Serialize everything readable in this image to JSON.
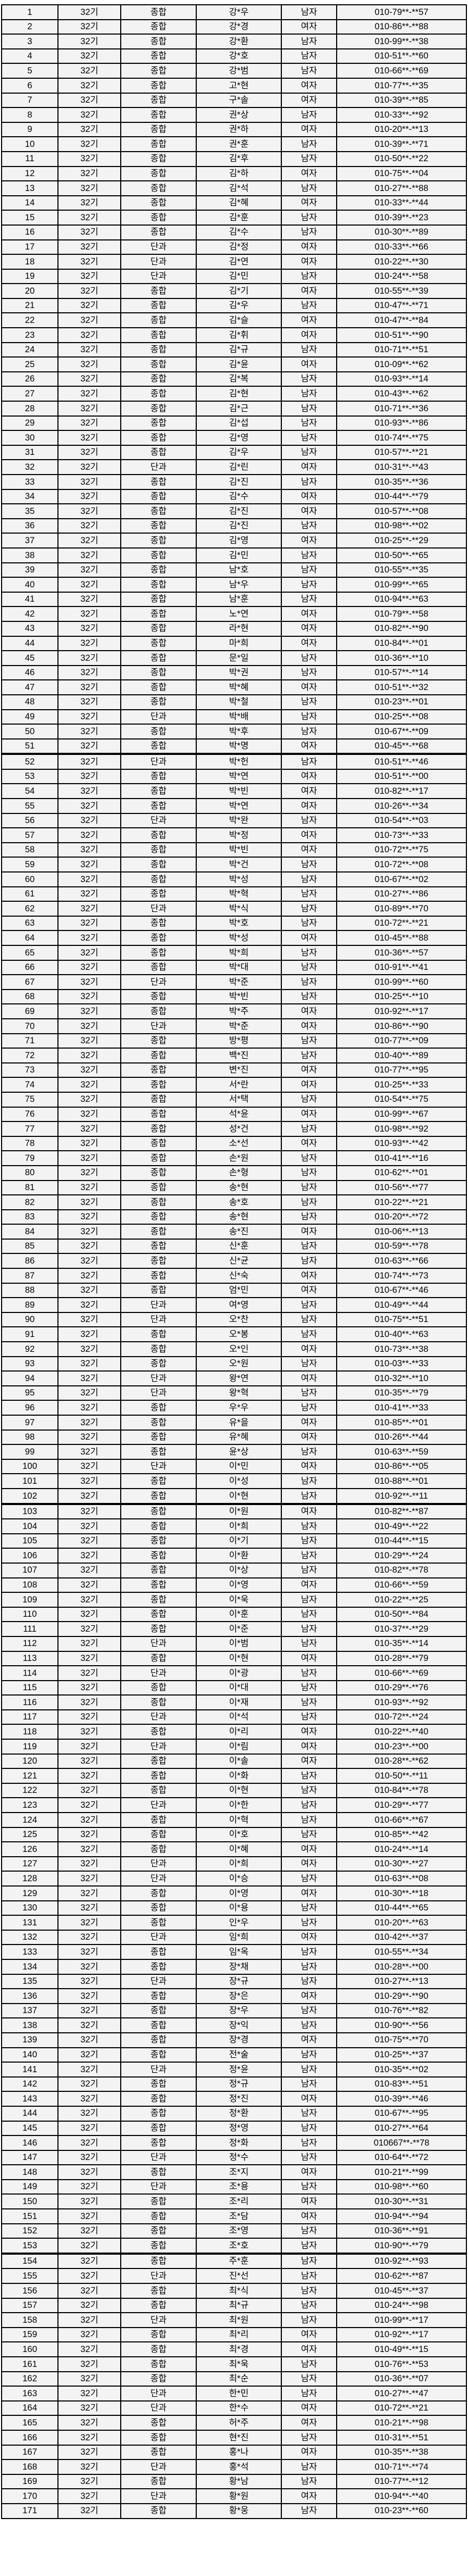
{
  "colors": {
    "page_background": "#ffffff",
    "cell_background": "#f3f3f3",
    "border": "#000000",
    "text": "#000000"
  },
  "layout": {
    "thick_border_after_rows": [
      51,
      102,
      153
    ]
  },
  "table": {
    "rows": [
      [
        "1",
        "32기",
        "종합",
        "강*우",
        "남자",
        "010-79**-**57"
      ],
      [
        "2",
        "32기",
        "종합",
        "강*경",
        "여자",
        "010-86**-**88"
      ],
      [
        "3",
        "32기",
        "종합",
        "강*환",
        "남자",
        "010-99**-**38"
      ],
      [
        "4",
        "32기",
        "종합",
        "강*호",
        "남자",
        "010-51**-**60"
      ],
      [
        "5",
        "32기",
        "종합",
        "강*범",
        "남자",
        "010-66**-**69"
      ],
      [
        "6",
        "32기",
        "종합",
        "고*현",
        "여자",
        "010-77**-**35"
      ],
      [
        "7",
        "32기",
        "종합",
        "구*솔",
        "여자",
        "010-39**-**85"
      ],
      [
        "8",
        "32기",
        "종합",
        "권*상",
        "남자",
        "010-33**-**92"
      ],
      [
        "9",
        "32기",
        "종합",
        "권*하",
        "여자",
        "010-20**-**13"
      ],
      [
        "10",
        "32기",
        "종합",
        "권*훈",
        "남자",
        "010-39**-**71"
      ],
      [
        "11",
        "32기",
        "종합",
        "김*후",
        "남자",
        "010-50**-**22"
      ],
      [
        "12",
        "32기",
        "종합",
        "김*하",
        "여자",
        "010-75**-**04"
      ],
      [
        "13",
        "32기",
        "종합",
        "김*석",
        "남자",
        "010-27**-**88"
      ],
      [
        "14",
        "32기",
        "종합",
        "김*혜",
        "여자",
        "010-33**-**44"
      ],
      [
        "15",
        "32기",
        "종합",
        "김*훈",
        "남자",
        "010-39**-**23"
      ],
      [
        "16",
        "32기",
        "종합",
        "김*수",
        "남자",
        "010-30**-**89"
      ],
      [
        "17",
        "32기",
        "단과",
        "김*정",
        "여자",
        "010-33**-**66"
      ],
      [
        "18",
        "32기",
        "단과",
        "김*연",
        "여자",
        "010-22**-**30"
      ],
      [
        "19",
        "32기",
        "단과",
        "김*민",
        "남자",
        "010-24**-**58"
      ],
      [
        "20",
        "32기",
        "종합",
        "김*기",
        "여자",
        "010-55**-**39"
      ],
      [
        "21",
        "32기",
        "종합",
        "김*우",
        "남자",
        "010-47**-**71"
      ],
      [
        "22",
        "32기",
        "종합",
        "김*슬",
        "여자",
        "010-47**-**84"
      ],
      [
        "23",
        "32기",
        "종합",
        "김*휘",
        "여자",
        "010-51**-**90"
      ],
      [
        "24",
        "32기",
        "종합",
        "김*규",
        "남자",
        "010-71**-**51"
      ],
      [
        "25",
        "32기",
        "종합",
        "김*윤",
        "여자",
        "010-09**-**62"
      ],
      [
        "26",
        "32기",
        "종합",
        "김*복",
        "남자",
        "010-93**-**14"
      ],
      [
        "27",
        "32기",
        "종합",
        "김*현",
        "남자",
        "010-43**-**62"
      ],
      [
        "28",
        "32기",
        "종합",
        "김*근",
        "남자",
        "010-71**-**36"
      ],
      [
        "29",
        "32기",
        "종합",
        "김*섭",
        "남자",
        "010-93**-**86"
      ],
      [
        "30",
        "32기",
        "종합",
        "김*영",
        "남자",
        "010-74**-**75"
      ],
      [
        "31",
        "32기",
        "종합",
        "김*우",
        "남자",
        "010-57**-**21"
      ],
      [
        "32",
        "32기",
        "단과",
        "김*린",
        "여자",
        "010-31**-**43"
      ],
      [
        "33",
        "32기",
        "종합",
        "김*진",
        "남자",
        "010-35**-**36"
      ],
      [
        "34",
        "32기",
        "종합",
        "김*수",
        "여자",
        "010-44**-**79"
      ],
      [
        "35",
        "32기",
        "종합",
        "김*진",
        "여자",
        "010-57**-**08"
      ],
      [
        "36",
        "32기",
        "종합",
        "김*진",
        "남자",
        "010-98**-**02"
      ],
      [
        "37",
        "32기",
        "종합",
        "김*영",
        "여자",
        "010-25**-**29"
      ],
      [
        "38",
        "32기",
        "종합",
        "김*민",
        "남자",
        "010-50**-**65"
      ],
      [
        "39",
        "32기",
        "종합",
        "남*호",
        "남자",
        "010-55**-**35"
      ],
      [
        "40",
        "32기",
        "종합",
        "남*우",
        "남자",
        "010-99**-**65"
      ],
      [
        "41",
        "32기",
        "종합",
        "남*훈",
        "남자",
        "010-94**-**63"
      ],
      [
        "42",
        "32기",
        "종합",
        "노*연",
        "여자",
        "010-79**-**58"
      ],
      [
        "43",
        "32기",
        "종합",
        "라*현",
        "여자",
        "010-82**-**90"
      ],
      [
        "44",
        "32기",
        "종합",
        "마*희",
        "여자",
        "010-84**-**01"
      ],
      [
        "45",
        "32기",
        "종합",
        "문*일",
        "남자",
        "010-36**-**10"
      ],
      [
        "46",
        "32기",
        "종합",
        "박*권",
        "남자",
        "010-57**-**14"
      ],
      [
        "47",
        "32기",
        "종합",
        "박*혜",
        "여자",
        "010-51**-**32"
      ],
      [
        "48",
        "32기",
        "종합",
        "박*철",
        "남자",
        "010-23**-**01"
      ],
      [
        "49",
        "32기",
        "단과",
        "박*배",
        "남자",
        "010-25**-**08"
      ],
      [
        "50",
        "32기",
        "종합",
        "박*후",
        "남자",
        "010-67**-**09"
      ],
      [
        "51",
        "32기",
        "종합",
        "박*명",
        "여자",
        "010-45**-**68"
      ],
      [
        "52",
        "32기",
        "단과",
        "박*헌",
        "남자",
        "010-51**-**46"
      ],
      [
        "53",
        "32기",
        "종합",
        "박*연",
        "여자",
        "010-51**-**00"
      ],
      [
        "54",
        "32기",
        "종합",
        "박*빈",
        "여자",
        "010-82**-**17"
      ],
      [
        "55",
        "32기",
        "종합",
        "박*연",
        "여자",
        "010-26**-**34"
      ],
      [
        "56",
        "32기",
        "단과",
        "박*완",
        "남자",
        "010-54**-**03"
      ],
      [
        "57",
        "32기",
        "종합",
        "박*정",
        "여자",
        "010-73**-**33"
      ],
      [
        "58",
        "32기",
        "종합",
        "박*빈",
        "여자",
        "010-72**-**75"
      ],
      [
        "59",
        "32기",
        "종합",
        "박*건",
        "남자",
        "010-72**-**08"
      ],
      [
        "60",
        "32기",
        "종합",
        "박*성",
        "남자",
        "010-67**-**02"
      ],
      [
        "61",
        "32기",
        "종합",
        "박*혁",
        "남자",
        "010-27**-**86"
      ],
      [
        "62",
        "32기",
        "단과",
        "박*식",
        "남자",
        "010-89**-**70"
      ],
      [
        "63",
        "32기",
        "종합",
        "박*호",
        "남자",
        "010-72**-**21"
      ],
      [
        "64",
        "32기",
        "종합",
        "박*성",
        "여자",
        "010-45**-**88"
      ],
      [
        "65",
        "32기",
        "종합",
        "박*희",
        "남자",
        "010-36**-**57"
      ],
      [
        "66",
        "32기",
        "종합",
        "박*대",
        "남자",
        "010-91**-**41"
      ],
      [
        "67",
        "32기",
        "단과",
        "박*준",
        "남자",
        "010-99**-**60"
      ],
      [
        "68",
        "32기",
        "종합",
        "박*빈",
        "남자",
        "010-25**-**10"
      ],
      [
        "69",
        "32기",
        "종합",
        "박*주",
        "여자",
        "010-92**-**17"
      ],
      [
        "70",
        "32기",
        "단과",
        "박*준",
        "여자",
        "010-86**-**90"
      ],
      [
        "71",
        "32기",
        "종합",
        "방*평",
        "남자",
        "010-77**-**09"
      ],
      [
        "72",
        "32기",
        "종합",
        "백*진",
        "남자",
        "010-40**-**89"
      ],
      [
        "73",
        "32기",
        "종합",
        "변*진",
        "여자",
        "010-77**-**95"
      ],
      [
        "74",
        "32기",
        "종합",
        "서*란",
        "여자",
        "010-25**-**33"
      ],
      [
        "75",
        "32기",
        "종합",
        "서*택",
        "남자",
        "010-54**-**75"
      ],
      [
        "76",
        "32기",
        "종합",
        "석*윤",
        "여자",
        "010-99**-**67"
      ],
      [
        "77",
        "32기",
        "종합",
        "성*건",
        "남자",
        "010-98**-**92"
      ],
      [
        "78",
        "32기",
        "종합",
        "소*선",
        "여자",
        "010-93**-**42"
      ],
      [
        "79",
        "32기",
        "종합",
        "손*원",
        "남자",
        "010-41**-**16"
      ],
      [
        "80",
        "32기",
        "종합",
        "손*형",
        "남자",
        "010-62**-**01"
      ],
      [
        "81",
        "32기",
        "종합",
        "송*현",
        "남자",
        "010-56**-**77"
      ],
      [
        "82",
        "32기",
        "종합",
        "송*호",
        "남자",
        "010-22**-**21"
      ],
      [
        "83",
        "32기",
        "종합",
        "송*현",
        "남자",
        "010-20**-**72"
      ],
      [
        "84",
        "32기",
        "종합",
        "송*진",
        "여자",
        "010-06**-**13"
      ],
      [
        "85",
        "32기",
        "종합",
        "신*훈",
        "남자",
        "010-59**-**78"
      ],
      [
        "86",
        "32기",
        "종합",
        "신*균",
        "남자",
        "010-63**-**66"
      ],
      [
        "87",
        "32기",
        "종합",
        "신*숙",
        "여자",
        "010-74**-**73"
      ],
      [
        "88",
        "32기",
        "종합",
        "엄*민",
        "여자",
        "010-67**-**46"
      ],
      [
        "89",
        "32기",
        "단과",
        "여*영",
        "남자",
        "010-49**-**44"
      ],
      [
        "90",
        "32기",
        "단과",
        "오*찬",
        "남자",
        "010-75**-**51"
      ],
      [
        "91",
        "32기",
        "종합",
        "오*봉",
        "남자",
        "010-40**-**63"
      ],
      [
        "92",
        "32기",
        "종합",
        "오*인",
        "여자",
        "010-73**-**38"
      ],
      [
        "93",
        "32기",
        "종합",
        "오*원",
        "남자",
        "010-03**-**33"
      ],
      [
        "94",
        "32기",
        "단과",
        "왕*연",
        "여자",
        "010-32**-**10"
      ],
      [
        "95",
        "32기",
        "단과",
        "왕*혁",
        "남자",
        "010-35**-**79"
      ],
      [
        "96",
        "32기",
        "종합",
        "우*우",
        "남자",
        "010-41**-**33"
      ],
      [
        "97",
        "32기",
        "종합",
        "유*을",
        "여자",
        "010-85**-**01"
      ],
      [
        "98",
        "32기",
        "종합",
        "유*혜",
        "여자",
        "010-26**-**44"
      ],
      [
        "99",
        "32기",
        "종합",
        "윤*상",
        "남자",
        "010-63**-**59"
      ],
      [
        "100",
        "32기",
        "단과",
        "이*민",
        "여자",
        "010-86**-**05"
      ],
      [
        "101",
        "32기",
        "종합",
        "이*성",
        "남자",
        "010-88**-**01"
      ],
      [
        "102",
        "32기",
        "종합",
        "이*현",
        "남자",
        "010-92**-**11"
      ],
      [
        "103",
        "32기",
        "종합",
        "이*원",
        "여자",
        "010-82**-**87"
      ],
      [
        "104",
        "32기",
        "종합",
        "이*희",
        "남자",
        "010-49**-**22"
      ],
      [
        "105",
        "32기",
        "종합",
        "이*기",
        "남자",
        "010-44**-**15"
      ],
      [
        "106",
        "32기",
        "종합",
        "이*환",
        "남자",
        "010-29**-**24"
      ],
      [
        "107",
        "32기",
        "종합",
        "이*상",
        "남자",
        "010-82**-**78"
      ],
      [
        "108",
        "32기",
        "종합",
        "이*영",
        "여자",
        "010-66**-**59"
      ],
      [
        "109",
        "32기",
        "종합",
        "이*욱",
        "남자",
        "010-22**-**25"
      ],
      [
        "110",
        "32기",
        "종합",
        "이*훈",
        "남자",
        "010-50**-**84"
      ],
      [
        "111",
        "32기",
        "종합",
        "이*준",
        "남자",
        "010-37**-**29"
      ],
      [
        "112",
        "32기",
        "단과",
        "이*범",
        "남자",
        "010-35**-**14"
      ],
      [
        "113",
        "32기",
        "종합",
        "이*현",
        "여자",
        "010-28**-**79"
      ],
      [
        "114",
        "32기",
        "단과",
        "이*광",
        "남자",
        "010-66**-**69"
      ],
      [
        "115",
        "32기",
        "종합",
        "이*대",
        "남자",
        "010-29**-**76"
      ],
      [
        "116",
        "32기",
        "종합",
        "이*재",
        "남자",
        "010-93**-**92"
      ],
      [
        "117",
        "32기",
        "단과",
        "이*석",
        "남자",
        "010-72**-**24"
      ],
      [
        "118",
        "32기",
        "종합",
        "이*리",
        "여자",
        "010-22**-**40"
      ],
      [
        "119",
        "32기",
        "단과",
        "이*림",
        "여자",
        "010-23**-**00"
      ],
      [
        "120",
        "32기",
        "종합",
        "이*솔",
        "여자",
        "010-28**-**62"
      ],
      [
        "121",
        "32기",
        "종합",
        "이*화",
        "남자",
        "010-50**-**11"
      ],
      [
        "122",
        "32기",
        "종합",
        "이*현",
        "남자",
        "010-84**-**78"
      ],
      [
        "123",
        "32기",
        "단과",
        "이*한",
        "남자",
        "010-29**-**77"
      ],
      [
        "124",
        "32기",
        "종합",
        "이*혁",
        "남자",
        "010-66**-**67"
      ],
      [
        "125",
        "32기",
        "종합",
        "이*호",
        "남자",
        "010-85**-**42"
      ],
      [
        "126",
        "32기",
        "종합",
        "이*혜",
        "여자",
        "010-24**-**14"
      ],
      [
        "127",
        "32기",
        "단과",
        "이*희",
        "여자",
        "010-30**-**27"
      ],
      [
        "128",
        "32기",
        "단과",
        "이*승",
        "남자",
        "010-63**-**08"
      ],
      [
        "129",
        "32기",
        "종합",
        "이*영",
        "여자",
        "010-30**-**18"
      ],
      [
        "130",
        "32기",
        "종합",
        "이*용",
        "남자",
        "010-44**-**65"
      ],
      [
        "131",
        "32기",
        "종합",
        "인*우",
        "남자",
        "010-20**-**63"
      ],
      [
        "132",
        "32기",
        "단과",
        "임*희",
        "여자",
        "010-42**-**37"
      ],
      [
        "133",
        "32기",
        "종합",
        "임*옥",
        "남자",
        "010-55**-**34"
      ],
      [
        "134",
        "32기",
        "종합",
        "장*채",
        "남자",
        "010-28**-**00"
      ],
      [
        "135",
        "32기",
        "단과",
        "장*규",
        "남자",
        "010-27**-**13"
      ],
      [
        "136",
        "32기",
        "종합",
        "장*은",
        "여자",
        "010-29**-**90"
      ],
      [
        "137",
        "32기",
        "종합",
        "장*우",
        "남자",
        "010-76**-**82"
      ],
      [
        "138",
        "32기",
        "종합",
        "장*익",
        "남자",
        "010-90**-**56"
      ],
      [
        "139",
        "32기",
        "종합",
        "장*경",
        "여자",
        "010-75**-**70"
      ],
      [
        "140",
        "32기",
        "종합",
        "전*술",
        "남자",
        "010-25**-**37"
      ],
      [
        "141",
        "32기",
        "단과",
        "정*윤",
        "남자",
        "010-35**-**02"
      ],
      [
        "142",
        "32기",
        "종합",
        "정*규",
        "남자",
        "010-83**-**51"
      ],
      [
        "143",
        "32기",
        "종합",
        "정*진",
        "여자",
        "010-39**-**46"
      ],
      [
        "144",
        "32기",
        "종합",
        "정*환",
        "남자",
        "010-67**-**95"
      ],
      [
        "145",
        "32기",
        "종합",
        "정*영",
        "남자",
        "010-27**-**64"
      ],
      [
        "146",
        "32기",
        "종합",
        "정*화",
        "남자",
        "010667**-**78"
      ],
      [
        "147",
        "32기",
        "단과",
        "정*수",
        "남자",
        "010-64**-**72"
      ],
      [
        "148",
        "32기",
        "종합",
        "조*지",
        "여자",
        "010-21**-**99"
      ],
      [
        "149",
        "32기",
        "단과",
        "조*용",
        "남자",
        "010-98**-**60"
      ],
      [
        "150",
        "32기",
        "종합",
        "조*리",
        "여자",
        "010-30**-**31"
      ],
      [
        "151",
        "32기",
        "종합",
        "조*담",
        "여자",
        "010-94**-**94"
      ],
      [
        "152",
        "32기",
        "종합",
        "조*영",
        "남자",
        "010-36**-**91"
      ],
      [
        "153",
        "32기",
        "종합",
        "조*호",
        "남자",
        "010-90**-**79"
      ],
      [
        "154",
        "32기",
        "종합",
        "주*훈",
        "남자",
        "010-92**-**93"
      ],
      [
        "155",
        "32기",
        "단과",
        "진*선",
        "남자",
        "010-62**-**87"
      ],
      [
        "156",
        "32기",
        "종합",
        "최*식",
        "남자",
        "010-45**-**37"
      ],
      [
        "157",
        "32기",
        "종합",
        "최*규",
        "남자",
        "010-24**-**98"
      ],
      [
        "158",
        "32기",
        "단과",
        "최*원",
        "남자",
        "010-99**-**17"
      ],
      [
        "159",
        "32기",
        "종합",
        "최*리",
        "여자",
        "010-92**-**17"
      ],
      [
        "160",
        "32기",
        "종합",
        "최*경",
        "여자",
        "010-49**-**15"
      ],
      [
        "161",
        "32기",
        "종합",
        "최*욱",
        "남자",
        "010-76**-**53"
      ],
      [
        "162",
        "32기",
        "종합",
        "최*순",
        "남자",
        "010-36**-**07"
      ],
      [
        "163",
        "32기",
        "단과",
        "한*민",
        "남자",
        "010-27**-**47"
      ],
      [
        "164",
        "32기",
        "단과",
        "한*수",
        "여자",
        "010-72**-**21"
      ],
      [
        "165",
        "32기",
        "종합",
        "허*주",
        "여자",
        "010-21**-**98"
      ],
      [
        "166",
        "32기",
        "종합",
        "현*진",
        "남자",
        "010-31**-**51"
      ],
      [
        "167",
        "32기",
        "종합",
        "홍*나",
        "여자",
        "010-35**-**38"
      ],
      [
        "168",
        "32기",
        "단과",
        "홍*석",
        "남자",
        "010-71**-**74"
      ],
      [
        "169",
        "32기",
        "종합",
        "황*남",
        "남자",
        "010-77**-**12"
      ],
      [
        "170",
        "32기",
        "단과",
        "황*원",
        "여자",
        "010-94**-**40"
      ],
      [
        "171",
        "32기",
        "종합",
        "황*웅",
        "남자",
        "010-23**-**60"
      ]
    ]
  }
}
